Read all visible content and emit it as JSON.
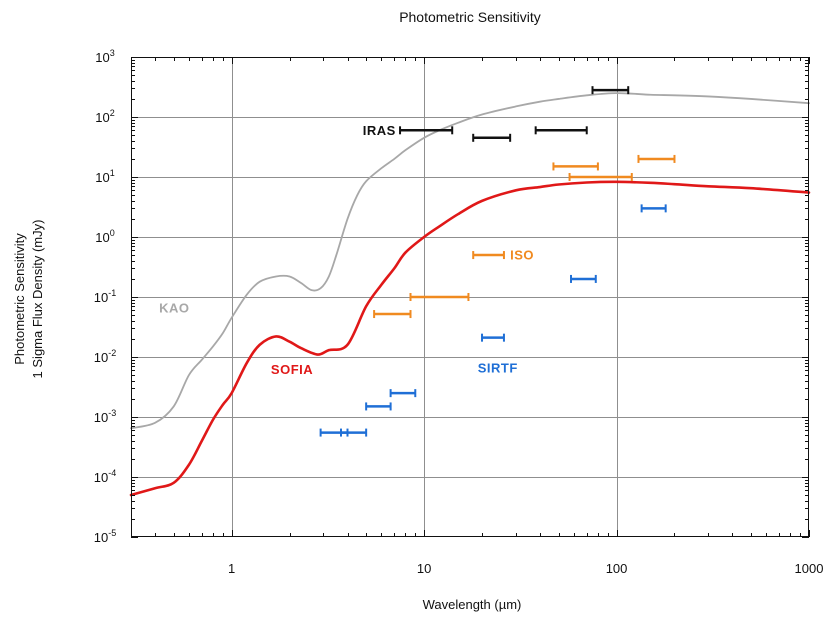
{
  "chart_data": {
    "type": "line",
    "title": "Photometric Sensitivity",
    "xlabel": "Wavelength (µm)",
    "ylabel_line1": "Photometric Sensitivity",
    "ylabel_line2": "1 Sigma Flux Density (mJy)",
    "xscale": "log",
    "yscale": "log",
    "xlim": [
      0.3,
      1000
    ],
    "ylim": [
      1e-05,
      1000
    ],
    "x_ticks": [
      {
        "value": 1,
        "label": "1"
      },
      {
        "value": 10,
        "label": "10"
      },
      {
        "value": 100,
        "label": "100"
      },
      {
        "value": 1000,
        "label": "1000"
      }
    ],
    "y_ticks": [
      {
        "value": 1e-05,
        "base": "10",
        "exp": "-5"
      },
      {
        "value": 0.0001,
        "base": "10",
        "exp": "-4"
      },
      {
        "value": 0.001,
        "base": "10",
        "exp": "-3"
      },
      {
        "value": 0.01,
        "base": "10",
        "exp": "-2"
      },
      {
        "value": 0.1,
        "base": "10",
        "exp": "-1"
      },
      {
        "value": 1,
        "base": "10",
        "exp": "0"
      },
      {
        "value": 10,
        "base": "10",
        "exp": "1"
      },
      {
        "value": 100,
        "base": "10",
        "exp": "2"
      },
      {
        "value": 1000,
        "base": "10",
        "exp": "3"
      }
    ],
    "grid": true,
    "series": [
      {
        "name": "KAO",
        "color": "#a8a8a8",
        "x": [
          0.3,
          0.4,
          0.5,
          0.6,
          0.7,
          0.8,
          0.9,
          1.0,
          1.2,
          1.4,
          1.7,
          2.0,
          2.3,
          2.6,
          2.9,
          3.2,
          3.5,
          4.0,
          4.5,
          5.0,
          6.0,
          7.0,
          8.0,
          10,
          12,
          15,
          20,
          30,
          40,
          50,
          70,
          100,
          150,
          200,
          300,
          500,
          1000
        ],
        "y": [
          0.00065,
          0.0008,
          0.0015,
          0.005,
          0.009,
          0.015,
          0.025,
          0.045,
          0.11,
          0.18,
          0.22,
          0.22,
          0.17,
          0.13,
          0.14,
          0.22,
          0.5,
          2.0,
          5.0,
          8.5,
          14,
          20,
          28,
          45,
          60,
          80,
          110,
          150,
          180,
          200,
          230,
          250,
          235,
          230,
          220,
          200,
          170
        ]
      },
      {
        "name": "SOFIA",
        "color": "#e01818",
        "x": [
          0.3,
          0.4,
          0.5,
          0.6,
          0.7,
          0.8,
          0.9,
          1.0,
          1.2,
          1.4,
          1.7,
          2.0,
          2.3,
          2.8,
          3.2,
          4.0,
          5.0,
          6.0,
          7.0,
          8.0,
          10,
          12,
          15,
          20,
          30,
          40,
          50,
          70,
          100,
          150,
          200,
          300,
          500,
          1000
        ],
        "y": [
          5e-05,
          6.5e-05,
          8e-05,
          0.00016,
          0.0004,
          0.0009,
          0.0016,
          0.0025,
          0.008,
          0.016,
          0.022,
          0.018,
          0.014,
          0.011,
          0.013,
          0.016,
          0.07,
          0.16,
          0.3,
          0.55,
          1.0,
          1.5,
          2.4,
          4.0,
          6.0,
          6.8,
          7.5,
          8.1,
          8.3,
          8.0,
          7.6,
          7.0,
          6.5,
          5.5
        ]
      }
    ],
    "range_groups": [
      {
        "name": "IRAS",
        "color": "#111111",
        "ranges": [
          {
            "x1": 7.5,
            "x2": 14,
            "y": 60
          },
          {
            "x1": 18,
            "x2": 28,
            "y": 45
          },
          {
            "x1": 38,
            "x2": 70,
            "y": 60
          },
          {
            "x1": 75,
            "x2": 115,
            "y": 280
          }
        ]
      },
      {
        "name": "ISO",
        "color": "#f08a20",
        "ranges": [
          {
            "x1": 5.5,
            "x2": 8.5,
            "y": 0.052
          },
          {
            "x1": 8.5,
            "x2": 17,
            "y": 0.1
          },
          {
            "x1": 18,
            "x2": 26,
            "y": 0.5
          },
          {
            "x1": 47,
            "x2": 80,
            "y": 15
          },
          {
            "x1": 57,
            "x2": 120,
            "y": 10
          },
          {
            "x1": 130,
            "x2": 200,
            "y": 20
          }
        ]
      },
      {
        "name": "SIRTF",
        "color": "#1f6fd6",
        "ranges": [
          {
            "x1": 2.9,
            "x2": 4.0,
            "y": 0.00055
          },
          {
            "x1": 3.7,
            "x2": 5.0,
            "y": 0.00055
          },
          {
            "x1": 5.0,
            "x2": 6.7,
            "y": 0.0015
          },
          {
            "x1": 6.7,
            "x2": 9.0,
            "y": 0.0025
          },
          {
            "x1": 20,
            "x2": 26,
            "y": 0.021
          },
          {
            "x1": 58,
            "x2": 78,
            "y": 0.2
          },
          {
            "x1": 135,
            "x2": 180,
            "y": 3.0
          }
        ]
      }
    ],
    "series_labels": [
      {
        "text": "KAO",
        "x": 0.42,
        "y": 0.055,
        "color": "#a8a8a8"
      },
      {
        "text": "SOFIA",
        "x": 1.6,
        "y": 0.0052,
        "color": "#e01818"
      },
      {
        "text": "IRAS",
        "x": 4.8,
        "y": 50,
        "color": "#111111"
      },
      {
        "text": "ISO",
        "x": 28,
        "y": 0.42,
        "color": "#f08a20"
      },
      {
        "text": "SIRTF",
        "x": 19,
        "y": 0.0055,
        "color": "#1f6fd6"
      }
    ]
  }
}
